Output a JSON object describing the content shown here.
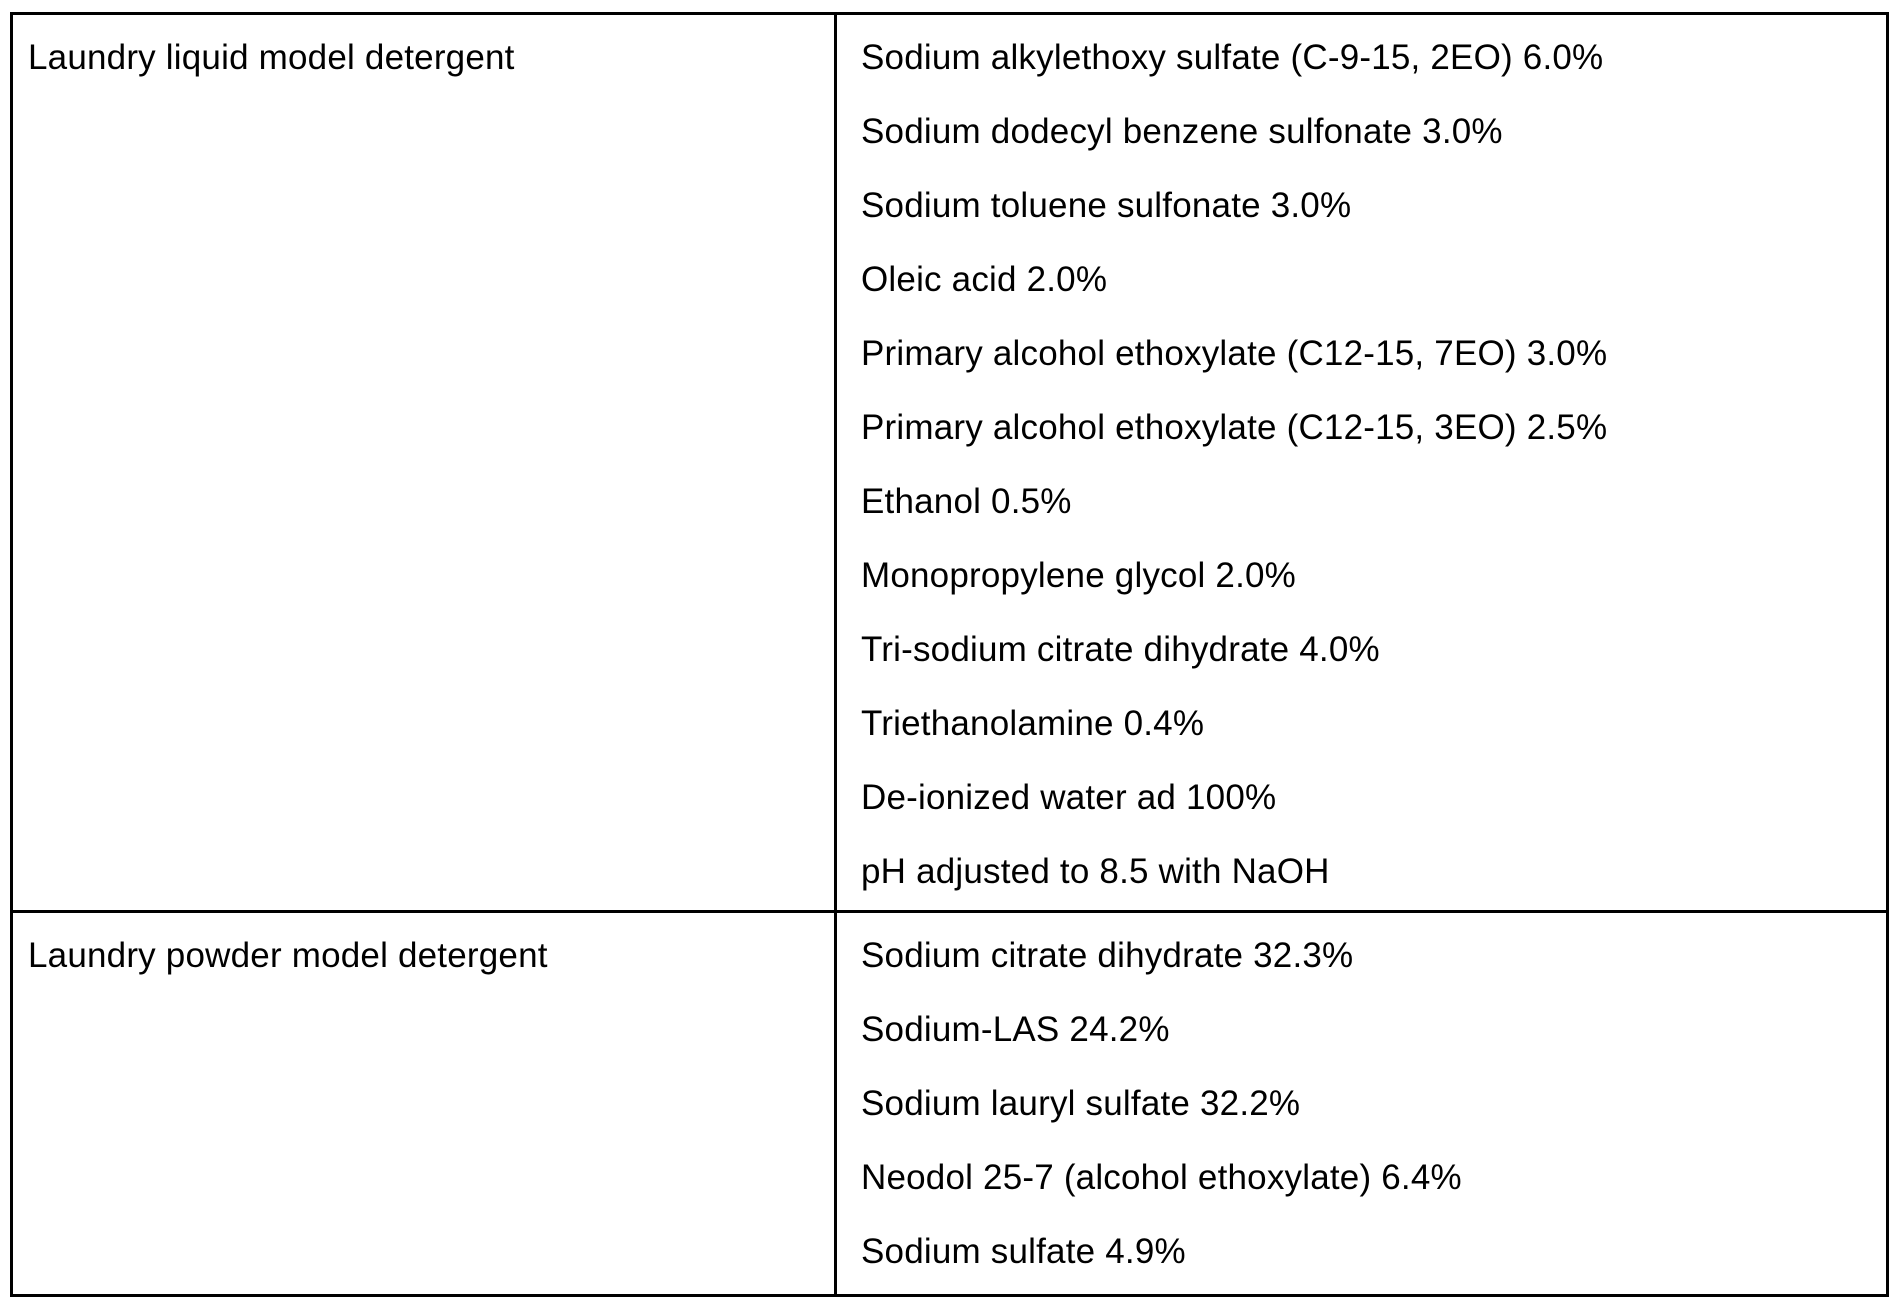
{
  "table": {
    "rows": [
      {
        "label": "Laundry liquid model detergent",
        "ingredients": [
          "Sodium alkylethoxy sulfate (C-9-15, 2EO) 6.0%",
          "Sodium dodecyl benzene sulfonate 3.0%",
          "Sodium toluene sulfonate 3.0%",
          "Oleic acid 2.0%",
          "Primary alcohol ethoxylate (C12-15, 7EO) 3.0%",
          "Primary alcohol ethoxylate (C12-15, 3EO) 2.5%",
          "Ethanol 0.5%",
          "Monopropylene glycol 2.0%",
          "Tri-sodium citrate dihydrate 4.0%",
          "Triethanolamine 0.4%",
          "De-ionized water ad 100%",
          "pH adjusted to 8.5 with NaOH"
        ]
      },
      {
        "label": "Laundry powder model detergent",
        "ingredients": [
          "Sodium citrate dihydrate 32.3%",
          "Sodium-LAS 24.2%",
          "Sodium lauryl sulfate 32.2%",
          "Neodol 25-7 (alcohol ethoxylate) 6.4%",
          "Sodium sulfate 4.9%"
        ]
      }
    ]
  }
}
